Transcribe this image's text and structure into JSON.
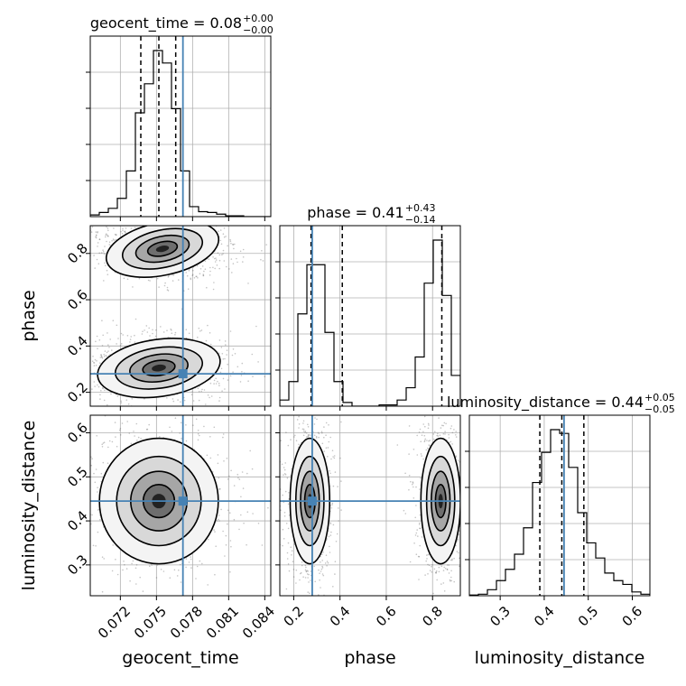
{
  "chart_data": {
    "type": "corner",
    "parameters": [
      "geocent_time",
      "phase",
      "luminosity_distance"
    ],
    "truth": {
      "geocent_time": 0.0772,
      "phase": 0.28,
      "luminosity_distance": 0.445
    },
    "titles": [
      {
        "param": "geocent_time",
        "text": "geocent_time = 0.08",
        "plus": "+0.00",
        "minus": "−0.00"
      },
      {
        "param": "phase",
        "text": "phase = 0.41",
        "plus": "+0.43",
        "minus": "−0.14"
      },
      {
        "param": "luminosity_distance",
        "text": "luminosity_distance = 0.44",
        "plus": "+0.05",
        "minus": "−0.05"
      }
    ],
    "axis_labels": {
      "x": [
        "geocent_time",
        "phase",
        "luminosity_distance"
      ],
      "y": [
        "phase",
        "luminosity_distance"
      ]
    },
    "x_ticks": {
      "geocent_time": [
        "0.072",
        "0.075",
        "0.078",
        "0.081",
        "0.084"
      ],
      "phase": [
        "0.2",
        "0.4",
        "0.6",
        "0.8"
      ],
      "luminosity_distance": [
        "0.3",
        "0.4",
        "0.5",
        "0.6"
      ]
    },
    "y_ticks": {
      "phase": [
        "0.2",
        "0.4",
        "0.6",
        "0.8"
      ],
      "luminosity_distance": [
        "0.3",
        "0.4",
        "0.5",
        "0.6"
      ]
    },
    "ranges": {
      "geocent_time": [
        0.0695,
        0.0845
      ],
      "phase": [
        0.14,
        0.92
      ],
      "luminosity_distance": [
        0.23,
        0.64
      ]
    },
    "quantiles": {
      "geocent_time": [
        0.0737,
        0.0752,
        0.0766
      ],
      "phase": [
        0.275,
        0.41,
        0.84
      ],
      "luminosity_distance": [
        0.39,
        0.44,
        0.49
      ]
    },
    "histograms": {
      "geocent_time": {
        "edges": [
          0.0695,
          0.07025,
          0.071,
          0.07175,
          0.0725,
          0.07325,
          0.074,
          0.07475,
          0.0755,
          0.07625,
          0.077,
          0.07775,
          0.0785,
          0.07925,
          0.08,
          0.08075,
          0.0815,
          0.08225,
          0.083,
          0.08375,
          0.0845
        ],
        "counts": [
          2,
          5,
          10,
          22,
          55,
          125,
          160,
          200,
          185,
          130,
          55,
          12,
          6,
          5,
          3,
          1,
          1,
          0,
          0,
          0
        ]
      },
      "phase": {
        "edges": [
          0.14,
          0.179,
          0.218,
          0.257,
          0.296,
          0.335,
          0.374,
          0.413,
          0.452,
          0.491,
          0.53,
          0.569,
          0.608,
          0.647,
          0.686,
          0.725,
          0.764,
          0.803,
          0.842,
          0.881,
          0.92
        ],
        "counts": [
          5,
          20,
          75,
          115,
          115,
          60,
          20,
          3,
          0,
          0,
          0,
          1,
          1,
          5,
          15,
          40,
          100,
          135,
          90,
          25
        ]
      },
      "luminosity_distance": {
        "edges": [
          0.23,
          0.2505,
          0.271,
          0.2915,
          0.312,
          0.3325,
          0.353,
          0.3735,
          0.394,
          0.4145,
          0.435,
          0.4555,
          0.476,
          0.4965,
          0.517,
          0.5375,
          0.558,
          0.5785,
          0.599,
          0.6195,
          0.64
        ],
        "counts": [
          1,
          2,
          8,
          20,
          35,
          55,
          90,
          150,
          190,
          220,
          215,
          170,
          110,
          70,
          50,
          30,
          20,
          15,
          5,
          2
        ]
      }
    },
    "clusters": {
      "phase_vs_geocent_time": [
        {
          "cx": 0.0755,
          "cy": 0.82,
          "rx": 0.0025,
          "ry": 0.06,
          "rot": 0.3
        },
        {
          "cx": 0.0752,
          "cy": 0.305,
          "rx": 0.0027,
          "ry": 0.065,
          "rot": 0.2
        }
      ],
      "luminosity_distance_vs_geocent_time": [
        {
          "cx": 0.0752,
          "cy": 0.445,
          "rx": 0.0026,
          "ry": 0.075,
          "rot": 0
        }
      ],
      "luminosity_distance_vs_phase": [
        {
          "cx": 0.27,
          "cy": 0.445,
          "rx": 0.045,
          "ry": 0.075,
          "rot": 0
        },
        {
          "cx": 0.835,
          "cy": 0.445,
          "rx": 0.045,
          "ry": 0.075,
          "rot": 0
        }
      ]
    },
    "grid": true,
    "colors": {
      "truth": "#4682b4",
      "line": "#000000",
      "grid": "#b0b0b0",
      "scatter": "#555555"
    }
  }
}
